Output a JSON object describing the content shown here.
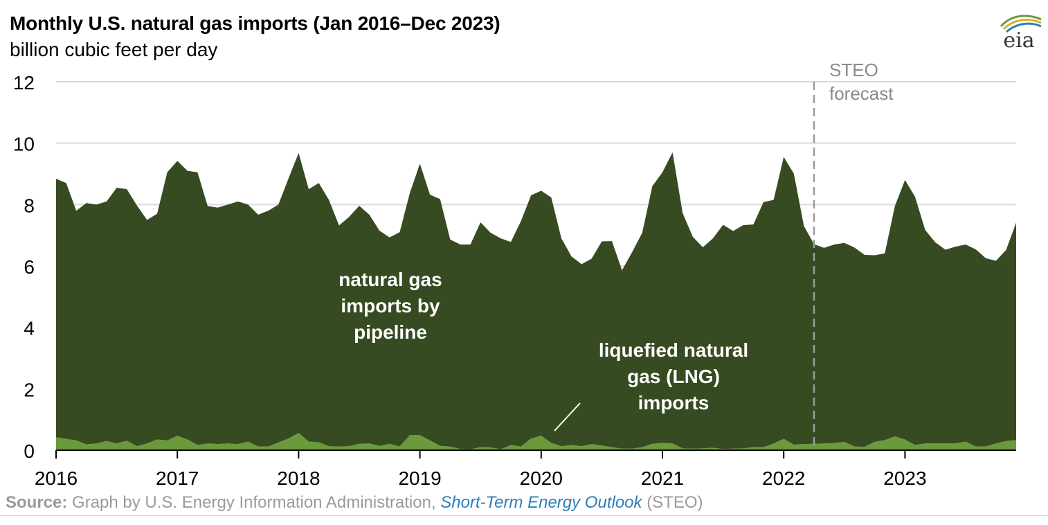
{
  "header": {
    "title": "Monthly U.S. natural gas imports (Jan 2016–Dec 2023)",
    "subtitle": "billion cubic feet per day",
    "logo_text": "eia"
  },
  "source": {
    "label": "Source:",
    "text": "Graph by U.S. Energy Information Administration,",
    "link": "Short-Term Energy Outlook",
    "suffix": "(STEO)"
  },
  "colors": {
    "pipeline": "#374b22",
    "lng": "#6b9a3c",
    "grid": "#d9d9d9",
    "forecast_line": "#9b9b9b",
    "forecast_text": "#8a8a8a",
    "annotation_text": "#ffffff"
  },
  "chart_data": {
    "type": "area",
    "stacked": true,
    "x_start": "2016-01",
    "x_end": "2023-12",
    "x_tick_labels": [
      "2016",
      "2017",
      "2018",
      "2019",
      "2020",
      "2021",
      "2022",
      "2023"
    ],
    "ylim": [
      0,
      12
    ],
    "y_ticks": [
      0,
      2,
      4,
      6,
      8,
      10,
      12
    ],
    "grid": true,
    "forecast_start": "2022-04",
    "forecast_label": [
      "STEO",
      "forecast"
    ],
    "annotations": {
      "pipeline": [
        "natural gas",
        "imports by",
        "pipeline"
      ],
      "lng": [
        "liquefied natural",
        "gas (LNG)",
        "imports"
      ]
    },
    "series": [
      {
        "name": "liquefied natural gas (LNG) imports",
        "values": [
          0.42,
          0.37,
          0.32,
          0.19,
          0.22,
          0.3,
          0.22,
          0.31,
          0.13,
          0.22,
          0.35,
          0.32,
          0.47,
          0.35,
          0.17,
          0.22,
          0.2,
          0.22,
          0.2,
          0.28,
          0.12,
          0.12,
          0.25,
          0.38,
          0.56,
          0.28,
          0.26,
          0.13,
          0.12,
          0.13,
          0.21,
          0.22,
          0.14,
          0.21,
          0.12,
          0.49,
          0.49,
          0.32,
          0.14,
          0.12,
          0.04,
          0.03,
          0.1,
          0.09,
          0.03,
          0.17,
          0.12,
          0.38,
          0.47,
          0.24,
          0.13,
          0.17,
          0.13,
          0.2,
          0.15,
          0.1,
          0.05,
          0.05,
          0.1,
          0.21,
          0.24,
          0.22,
          0.06,
          0.05,
          0.06,
          0.08,
          0.04,
          0.05,
          0.06,
          0.1,
          0.1,
          0.22,
          0.37,
          0.18,
          0.2,
          0.21,
          0.22,
          0.23,
          0.27,
          0.12,
          0.11,
          0.27,
          0.33,
          0.45,
          0.35,
          0.17,
          0.22,
          0.22,
          0.22,
          0.22,
          0.28,
          0.12,
          0.12,
          0.22,
          0.3,
          0.33
        ]
      },
      {
        "name": "natural gas imports by pipeline",
        "values": [
          8.42,
          8.33,
          7.48,
          7.86,
          7.78,
          7.8,
          8.33,
          8.19,
          7.84,
          7.28,
          7.35,
          8.73,
          8.95,
          8.75,
          8.88,
          7.73,
          7.7,
          7.78,
          7.9,
          7.72,
          7.55,
          7.68,
          7.75,
          8.47,
          9.12,
          8.22,
          8.44,
          8.02,
          7.2,
          7.47,
          7.75,
          7.45,
          7.01,
          6.72,
          6.98,
          7.88,
          8.84,
          8.0,
          8.04,
          6.74,
          6.66,
          6.67,
          7.32,
          6.99,
          6.87,
          6.61,
          7.34,
          7.92,
          7.98,
          7.99,
          6.77,
          6.14,
          5.93,
          6.04,
          6.65,
          6.71,
          5.81,
          6.4,
          6.98,
          8.39,
          8.81,
          9.48,
          7.66,
          6.9,
          6.55,
          6.82,
          7.3,
          7.09,
          7.27,
          7.25,
          7.98,
          7.93,
          9.18,
          8.83,
          7.1,
          6.5,
          6.37,
          6.47,
          6.48,
          6.48,
          6.25,
          6.08,
          6.08,
          7.5,
          8.45,
          8.08,
          6.95,
          6.55,
          6.31,
          6.41,
          6.42,
          6.42,
          6.13,
          5.95,
          6.22,
          7.08
        ]
      }
    ]
  }
}
